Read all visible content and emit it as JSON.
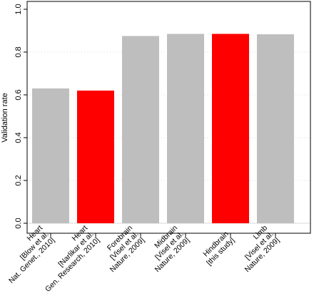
{
  "chart_data": {
    "type": "bar",
    "title": "",
    "xlabel": "",
    "ylabel": "Validation rate",
    "ylim": [
      0,
      1.0
    ],
    "yticks": [
      "0.0",
      "0.2",
      "0.4",
      "0.6",
      "0.8",
      "1.0"
    ],
    "grid": "horizontal dotted",
    "legend": "none",
    "categories": [
      [
        "Heart",
        "[Blow et al.",
        "Nat. Genet., 2010]"
      ],
      [
        "Heart",
        "[Narlikar et al.",
        "Gen. Research, 2010]"
      ],
      [
        "Forebrain",
        "[Visel et al.",
        "Nature, 2009]"
      ],
      [
        "Midbrain",
        "[Visel et al.",
        "Nature, 2009]"
      ],
      [
        "Hindbrain",
        "[this study]"
      ],
      [
        "Limb",
        "[Visel et al.",
        "Nature, 2009]"
      ]
    ],
    "values": [
      0.63,
      0.62,
      0.875,
      0.885,
      0.885,
      0.883
    ],
    "bar_colors": [
      "#bebebe",
      "#ff0000",
      "#bebebe",
      "#bebebe",
      "#ff0000",
      "#bebebe"
    ]
  },
  "colors": {
    "grid": "#d9d9d9",
    "axis": "#000000",
    "background": "#ffffff"
  }
}
